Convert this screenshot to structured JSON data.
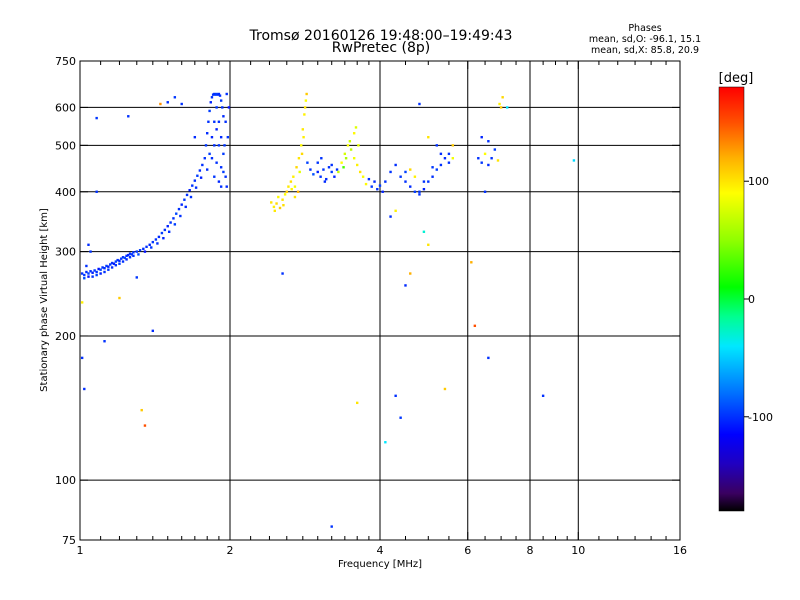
{
  "chart_data": {
    "type": "scatter",
    "title": "Tromsø 20160126 19:48:00–19:49:43",
    "subtitle": "RwPretec (8p)",
    "stats": {
      "heading": "Phases",
      "line_o": "mean, sd,O: -96.1, 15.1",
      "line_x": "mean, sd,X:  85.8, 20.9"
    },
    "xlabel": "Frequency [MHz]",
    "ylabel": "Stationary phase Virtual Height [km]",
    "x_scale": "log",
    "y_scale": "log",
    "xlim": [
      1,
      16
    ],
    "ylim": [
      75,
      750
    ],
    "x_ticks": [
      {
        "value": 1,
        "label": "1"
      },
      {
        "value": 2,
        "label": "2"
      },
      {
        "value": 4,
        "label": "4"
      },
      {
        "value": 6,
        "label": "6"
      },
      {
        "value": 8,
        "label": "8"
      },
      {
        "value": 10,
        "label": "10"
      },
      {
        "value": 16,
        "label": "16"
      }
    ],
    "x_minor_ticks": [
      1.1,
      1.2,
      1.3,
      1.4,
      1.5,
      1.6,
      1.7,
      1.8,
      1.9,
      2.2,
      2.4,
      2.6,
      2.8,
      3,
      3.2,
      3.4,
      3.6,
      3.8,
      4.5,
      5,
      5.5,
      6.5,
      7,
      7.5,
      8.5,
      9,
      9.5,
      11,
      12,
      13,
      14,
      15
    ],
    "x_gridlines": [
      2,
      4,
      6,
      8,
      10
    ],
    "y_ticks": [
      {
        "value": 75,
        "label": "75"
      },
      {
        "value": 100,
        "label": "100"
      },
      {
        "value": 200,
        "label": "200"
      },
      {
        "value": 300,
        "label": "300"
      },
      {
        "value": 400,
        "label": "400"
      },
      {
        "value": 500,
        "label": "500"
      },
      {
        "value": 600,
        "label": "600"
      },
      {
        "value": 750,
        "label": "750"
      }
    ],
    "y_gridlines": [
      100,
      200,
      300,
      400,
      500,
      600
    ],
    "colorbar": {
      "label": "[deg]",
      "range": [
        -180,
        180
      ],
      "ticks": [
        {
          "value": 100,
          "label": "100"
        },
        {
          "value": 0,
          "label": "0"
        },
        {
          "value": -100,
          "label": "-100"
        }
      ],
      "stops": [
        {
          "value": -180,
          "color": "#000000"
        },
        {
          "value": -165,
          "color": "#3a0060"
        },
        {
          "value": -140,
          "color": "#2000c0"
        },
        {
          "value": -115,
          "color": "#0000ff"
        },
        {
          "value": -80,
          "color": "#0070ff"
        },
        {
          "value": -40,
          "color": "#00e8ff"
        },
        {
          "value": -15,
          "color": "#00ff90"
        },
        {
          "value": 10,
          "color": "#00ff00"
        },
        {
          "value": 50,
          "color": "#90ff00"
        },
        {
          "value": 90,
          "color": "#ffff00"
        },
        {
          "value": 120,
          "color": "#ffb000"
        },
        {
          "value": 150,
          "color": "#ff5000"
        },
        {
          "value": 180,
          "color": "#ff0000"
        }
      ]
    },
    "points": [
      [
        1.01,
        270,
        -100
      ],
      [
        1.02,
        268,
        -98
      ],
      [
        1.03,
        272,
        -102
      ],
      [
        1.04,
        270,
        -95
      ],
      [
        1.05,
        273,
        -100
      ],
      [
        1.06,
        271,
        -105
      ],
      [
        1.07,
        274,
        -97
      ],
      [
        1.08,
        272,
        -100
      ],
      [
        1.09,
        276,
        -110
      ],
      [
        1.1,
        275,
        -92
      ],
      [
        1.11,
        278,
        -100
      ],
      [
        1.12,
        277,
        -101
      ],
      [
        1.13,
        280,
        -96
      ],
      [
        1.14,
        279,
        -104
      ],
      [
        1.15,
        282,
        -99
      ],
      [
        1.16,
        284,
        -100
      ],
      [
        1.17,
        283,
        -108
      ],
      [
        1.18,
        286,
        -95
      ],
      [
        1.19,
        288,
        -100
      ],
      [
        1.2,
        287,
        -103
      ],
      [
        1.21,
        290,
        -98
      ],
      [
        1.22,
        292,
        -100
      ],
      [
        1.23,
        291,
        -92
      ],
      [
        1.24,
        294,
        -100
      ],
      [
        1.25,
        295,
        -106
      ],
      [
        1.26,
        297,
        -99
      ],
      [
        1.27,
        296,
        -100
      ],
      [
        1.28,
        299,
        -101
      ],
      [
        1.02,
        264,
        -90
      ],
      [
        1.04,
        266,
        -110
      ],
      [
        1.06,
        266,
        -100
      ],
      [
        1.08,
        268,
        -95
      ],
      [
        1.1,
        270,
        -105
      ],
      [
        1.12,
        272,
        -100
      ],
      [
        1.14,
        275,
        -98
      ],
      [
        1.16,
        278,
        -102
      ],
      [
        1.18,
        281,
        -100
      ],
      [
        1.2,
        283,
        -97
      ],
      [
        1.22,
        286,
        -100
      ],
      [
        1.24,
        289,
        -104
      ],
      [
        1.26,
        292,
        -99
      ],
      [
        1.28,
        294,
        -100
      ],
      [
        1.3,
        300,
        -100
      ],
      [
        1.32,
        302,
        -96
      ],
      [
        1.34,
        304,
        -101
      ],
      [
        1.36,
        307,
        -100
      ],
      [
        1.38,
        310,
        -104
      ],
      [
        1.4,
        314,
        -98
      ],
      [
        1.42,
        318,
        -100
      ],
      [
        1.44,
        322,
        -102
      ],
      [
        1.46,
        328,
        -97
      ],
      [
        1.48,
        333,
        -100
      ],
      [
        1.5,
        339,
        -105
      ],
      [
        1.52,
        345,
        -99
      ],
      [
        1.54,
        352,
        -100
      ],
      [
        1.56,
        360,
        -93
      ],
      [
        1.58,
        368,
        -100
      ],
      [
        1.6,
        376,
        -103
      ],
      [
        1.62,
        385,
        -98
      ],
      [
        1.64,
        394,
        -100
      ],
      [
        1.66,
        403,
        -106
      ],
      [
        1.68,
        412,
        -99
      ],
      [
        1.7,
        422,
        -100
      ],
      [
        1.72,
        432,
        -97
      ],
      [
        1.74,
        443,
        -101
      ],
      [
        1.76,
        455,
        -100
      ],
      [
        1.31,
        296,
        -92
      ],
      [
        1.35,
        300,
        -110
      ],
      [
        1.39,
        306,
        -98
      ],
      [
        1.43,
        312,
        -100
      ],
      [
        1.47,
        320,
        -104
      ],
      [
        1.51,
        330,
        -100
      ],
      [
        1.55,
        342,
        -96
      ],
      [
        1.59,
        356,
        -100
      ],
      [
        1.63,
        372,
        -102
      ],
      [
        1.67,
        390,
        -99
      ],
      [
        1.71,
        408,
        -100
      ],
      [
        1.75,
        428,
        -105
      ],
      [
        1.78,
        470,
        -100
      ],
      [
        1.79,
        500,
        -98
      ],
      [
        1.8,
        530,
        -102
      ],
      [
        1.81,
        560,
        -100
      ],
      [
        1.82,
        590,
        -96
      ],
      [
        1.83,
        615,
        -104
      ],
      [
        1.84,
        630,
        -100
      ],
      [
        1.85,
        638,
        -99
      ],
      [
        1.86,
        640,
        -101
      ],
      [
        1.87,
        638,
        -100
      ],
      [
        1.88,
        640,
        -95
      ],
      [
        1.89,
        638,
        -100
      ],
      [
        1.9,
        640,
        -103
      ],
      [
        1.91,
        635,
        -100
      ],
      [
        1.92,
        620,
        -98
      ],
      [
        1.93,
        600,
        -100
      ],
      [
        1.94,
        575,
        -102
      ],
      [
        1.8,
        445,
        -100
      ],
      [
        1.82,
        480,
        -96
      ],
      [
        1.84,
        520,
        -104
      ],
      [
        1.86,
        560,
        -100
      ],
      [
        1.88,
        600,
        -98
      ],
      [
        1.9,
        560,
        -100
      ],
      [
        1.92,
        520,
        -102
      ],
      [
        1.94,
        480,
        -97
      ],
      [
        1.86,
        500,
        -100
      ],
      [
        1.88,
        540,
        -105
      ],
      [
        1.9,
        500,
        -99
      ],
      [
        1.92,
        450,
        -100
      ],
      [
        1.84,
        470,
        -101
      ],
      [
        1.86,
        430,
        -98
      ],
      [
        1.88,
        460,
        -100
      ],
      [
        1.9,
        420,
        -103
      ],
      [
        1.92,
        410,
        -100
      ],
      [
        1.94,
        440,
        -96
      ],
      [
        1.96,
        430,
        -100
      ],
      [
        1.97,
        410,
        -102
      ],
      [
        1.98,
        520,
        -99
      ],
      [
        1.99,
        600,
        -110
      ],
      [
        1.97,
        640,
        -100
      ],
      [
        1.96,
        560,
        -101
      ],
      [
        1.95,
        500,
        -98
      ],
      [
        2.42,
        380,
        100
      ],
      [
        2.45,
        372,
        96
      ],
      [
        2.48,
        378,
        104
      ],
      [
        2.5,
        390,
        92
      ],
      [
        2.52,
        370,
        108
      ],
      [
        2.55,
        385,
        100
      ],
      [
        2.58,
        395,
        90
      ],
      [
        2.6,
        400,
        110
      ],
      [
        2.62,
        410,
        98
      ],
      [
        2.65,
        420,
        102
      ],
      [
        2.68,
        430,
        95
      ],
      [
        2.7,
        410,
        85
      ],
      [
        2.72,
        450,
        105
      ],
      [
        2.75,
        470,
        100
      ],
      [
        2.78,
        500,
        92
      ],
      [
        2.8,
        540,
        98
      ],
      [
        2.82,
        580,
        95
      ],
      [
        2.84,
        620,
        88
      ],
      [
        2.85,
        640,
        110
      ],
      [
        2.83,
        600,
        100
      ],
      [
        2.81,
        520,
        96
      ],
      [
        2.79,
        480,
        104
      ],
      [
        2.76,
        440,
        80
      ],
      [
        2.74,
        400,
        120
      ],
      [
        2.7,
        390,
        100
      ],
      [
        2.66,
        405,
        95
      ],
      [
        2.56,
        375,
        102
      ],
      [
        2.46,
        365,
        98
      ],
      [
        2.86,
        460,
        -95
      ],
      [
        2.9,
        445,
        -100
      ],
      [
        2.94,
        435,
        -90
      ],
      [
        3.0,
        440,
        -105
      ],
      [
        3.04,
        430,
        -100
      ],
      [
        3.08,
        445,
        -98
      ],
      [
        3.12,
        425,
        -102
      ],
      [
        3.16,
        450,
        -100
      ],
      [
        3.2,
        440,
        -96
      ],
      [
        3.24,
        430,
        -104
      ],
      [
        3.28,
        445,
        -100
      ],
      [
        3.0,
        460,
        -98
      ],
      [
        3.1,
        420,
        -102
      ],
      [
        3.2,
        455,
        -100
      ],
      [
        3.05,
        470,
        -99
      ],
      [
        3.3,
        440,
        70
      ],
      [
        3.35,
        460,
        90
      ],
      [
        3.4,
        480,
        75
      ],
      [
        3.45,
        500,
        88
      ],
      [
        3.5,
        490,
        65
      ],
      [
        3.55,
        470,
        85
      ],
      [
        3.6,
        455,
        95
      ],
      [
        3.62,
        500,
        80
      ],
      [
        3.55,
        530,
        92
      ],
      [
        3.48,
        510,
        70
      ],
      [
        3.42,
        470,
        60
      ],
      [
        3.38,
        450,
        30
      ],
      [
        3.65,
        440,
        100
      ],
      [
        3.7,
        430,
        88
      ],
      [
        3.58,
        545,
        78
      ],
      [
        3.75,
        415,
        92
      ],
      [
        3.8,
        425,
        -100
      ],
      [
        3.85,
        410,
        -98
      ],
      [
        3.9,
        420,
        -102
      ],
      [
        3.95,
        405,
        -100
      ],
      [
        4.0,
        412,
        -96
      ],
      [
        4.05,
        400,
        -104
      ],
      [
        4.1,
        420,
        -100
      ],
      [
        4.2,
        440,
        -99
      ],
      [
        4.3,
        455,
        -101
      ],
      [
        4.4,
        430,
        -98
      ],
      [
        4.5,
        420,
        -100
      ],
      [
        4.6,
        410,
        -102
      ],
      [
        4.7,
        400,
        -97
      ],
      [
        4.8,
        395,
        -100
      ],
      [
        4.9,
        405,
        -105
      ],
      [
        5.0,
        420,
        -99
      ],
      [
        5.1,
        430,
        -100
      ],
      [
        5.2,
        445,
        -96
      ],
      [
        5.3,
        455,
        -100
      ],
      [
        5.4,
        470,
        -103
      ],
      [
        5.5,
        480,
        -100
      ],
      [
        4.5,
        440,
        -95
      ],
      [
        4.7,
        430,
        95
      ],
      [
        4.9,
        420,
        -100
      ],
      [
        5.1,
        450,
        -98
      ],
      [
        5.3,
        480,
        -102
      ],
      [
        5.5,
        460,
        -100
      ],
      [
        4.6,
        445,
        105
      ],
      [
        5.2,
        500,
        -100
      ],
      [
        5.6,
        470,
        85
      ],
      [
        4.8,
        400,
        -100
      ],
      [
        6.3,
        470,
        -100
      ],
      [
        6.4,
        460,
        -98
      ],
      [
        6.5,
        480,
        90
      ],
      [
        6.6,
        455,
        -102
      ],
      [
        6.7,
        470,
        -100
      ],
      [
        6.8,
        490,
        -96
      ],
      [
        6.9,
        465,
        100
      ],
      [
        7.0,
        600,
        110
      ],
      [
        7.05,
        630,
        105
      ],
      [
        6.95,
        610,
        95
      ],
      [
        6.4,
        520,
        -104
      ],
      [
        6.6,
        510,
        -100
      ],
      [
        1.03,
        280,
        -100
      ],
      [
        1.05,
        300,
        -99
      ],
      [
        1.04,
        310,
        -101
      ],
      [
        1.08,
        400,
        -100
      ],
      [
        1.08,
        570,
        -98
      ],
      [
        1.01,
        235,
        95
      ],
      [
        1.01,
        180,
        -100
      ],
      [
        1.02,
        155,
        -101
      ],
      [
        1.12,
        195,
        -100
      ],
      [
        1.2,
        240,
        110
      ],
      [
        1.25,
        575,
        -100
      ],
      [
        1.3,
        265,
        -98
      ],
      [
        1.33,
        140,
        110
      ],
      [
        1.35,
        130,
        150
      ],
      [
        1.4,
        205,
        -102
      ],
      [
        1.45,
        610,
        130
      ],
      [
        1.5,
        615,
        -100
      ],
      [
        1.55,
        630,
        -98
      ],
      [
        1.6,
        610,
        -100
      ],
      [
        1.7,
        520,
        -102
      ],
      [
        2.55,
        270,
        -100
      ],
      [
        3.2,
        80,
        -99
      ],
      [
        3.6,
        145,
        100
      ],
      [
        4.1,
        120,
        -40
      ],
      [
        4.3,
        150,
        -100
      ],
      [
        4.4,
        135,
        -98
      ],
      [
        4.5,
        255,
        -102
      ],
      [
        4.6,
        270,
        120
      ],
      [
        4.2,
        355,
        -100
      ],
      [
        4.3,
        365,
        95
      ],
      [
        4.8,
        610,
        -100
      ],
      [
        4.9,
        330,
        -30
      ],
      [
        5.0,
        310,
        100
      ],
      [
        5.4,
        155,
        110
      ],
      [
        6.1,
        285,
        120
      ],
      [
        6.2,
        210,
        150
      ],
      [
        6.5,
        400,
        -100
      ],
      [
        6.6,
        180,
        -100
      ],
      [
        7.2,
        600,
        -40
      ],
      [
        8.5,
        150,
        -100
      ],
      [
        9.8,
        465,
        -45
      ],
      [
        5.6,
        500,
        110
      ],
      [
        5.0,
        520,
        100
      ]
    ]
  }
}
